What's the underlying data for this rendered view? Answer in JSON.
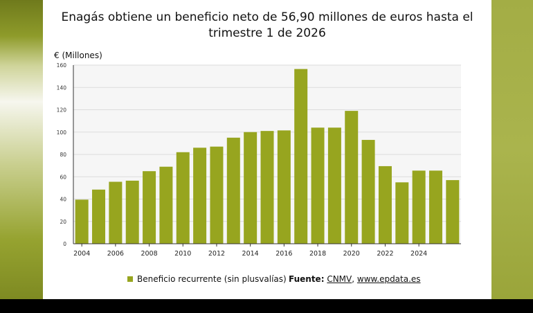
{
  "title": "Enagás obtiene un beneficio neto de 56,90 millones de euros hasta el trimestre 1 de 2026",
  "unit_label": "€ (Millones)",
  "legend_label": "Beneficio recurrente (sin plusvalías)",
  "source": {
    "prefix": "Fuente:",
    "cnmv": "CNMV",
    "separator": ",",
    "epdata": "www.epdata.es"
  },
  "colors": {
    "bar": "#97a51f",
    "grid": "#dcdcdc",
    "plot_bg": "#f6f6f6"
  },
  "chart_data": {
    "type": "bar",
    "title": "Enagás obtiene un beneficio neto de 56,90 millones de euros hasta el trimestre 1 de 2026",
    "ylabel": "€ (Millones)",
    "xlabel": "",
    "ylim": [
      0,
      160
    ],
    "yticks": [
      0,
      20,
      40,
      60,
      80,
      100,
      120,
      140,
      160
    ],
    "xtick_labels": [
      "2004",
      "2006",
      "2008",
      "2010",
      "2012",
      "2014",
      "2016",
      "2018",
      "2020",
      "2022",
      "2024"
    ],
    "categories": [
      "2004",
      "2005",
      "2006",
      "2007",
      "2008",
      "2009",
      "2010",
      "2011",
      "2012",
      "2013",
      "2014",
      "2015",
      "2016",
      "2017",
      "2018",
      "2019",
      "2020",
      "2021",
      "2022",
      "2023",
      "2024",
      "2025",
      "2026"
    ],
    "series": [
      {
        "name": "Beneficio recurrente (sin plusvalías)",
        "values": [
          39.5,
          48.5,
          55.5,
          56.5,
          65,
          69,
          82,
          86,
          87,
          95,
          100,
          101,
          101.5,
          156.5,
          104,
          104,
          119,
          93,
          69.5,
          55,
          65.5,
          65.5,
          57
        ]
      }
    ],
    "grid": true,
    "legend_position": "bottom-left"
  }
}
